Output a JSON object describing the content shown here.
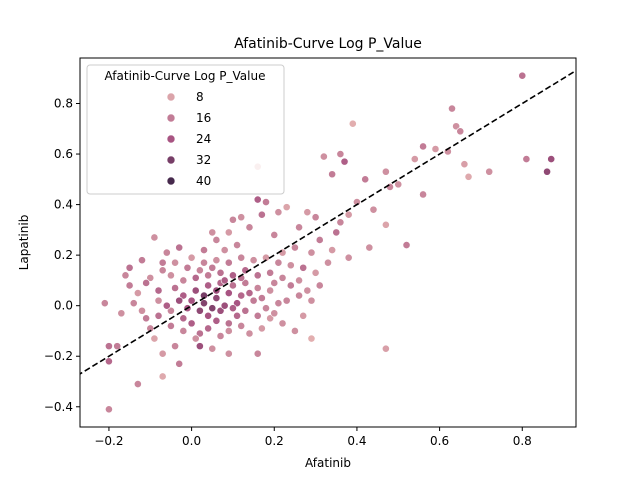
{
  "chart_data": {
    "type": "scatter",
    "title": "Afatinib-Curve Log P_Value",
    "xlabel": "Afatinib",
    "ylabel": "Lapatinib",
    "xlim": [
      -0.27,
      0.93
    ],
    "ylim": [
      -0.48,
      0.98
    ],
    "xticks": [
      -0.2,
      0.0,
      0.2,
      0.4,
      0.6,
      0.8
    ],
    "xtick_labels": [
      "−0.2",
      "0.0",
      "0.2",
      "0.4",
      "0.6",
      "0.8"
    ],
    "yticks": [
      -0.4,
      -0.2,
      0.0,
      0.2,
      0.4,
      0.6,
      0.8
    ],
    "ytick_labels": [
      "−0.4",
      "−0.2",
      "0.0",
      "0.2",
      "0.4",
      "0.6",
      "0.8"
    ],
    "grid": false,
    "hue_name": "Afatinib-Curve Log P_Value",
    "hue_range": [
      4,
      44
    ],
    "reference_line": {
      "style": "dashed",
      "color": "#000000",
      "slope": 1,
      "intercept": 0
    },
    "legend": {
      "title": "Afatinib-Curve Log P_Value",
      "placement": "top-left",
      "entries": [
        {
          "label": "8",
          "value": 8
        },
        {
          "label": "16",
          "value": 16
        },
        {
          "label": "24",
          "value": 24
        },
        {
          "label": "32",
          "value": 32
        },
        {
          "label": "40",
          "value": 40
        }
      ]
    },
    "colors": {
      "low": "#e8b8b4",
      "high": "#2d1e3e",
      "marker_edge": "#ffffff"
    },
    "points": [
      {
        "x": 0.8,
        "y": 0.91,
        "hue": 18
      },
      {
        "x": 0.87,
        "y": 0.58,
        "hue": 26
      },
      {
        "x": 0.86,
        "y": 0.53,
        "hue": 28
      },
      {
        "x": 0.81,
        "y": 0.58,
        "hue": 16
      },
      {
        "x": 0.72,
        "y": 0.53,
        "hue": 12
      },
      {
        "x": 0.67,
        "y": 0.51,
        "hue": 7
      },
      {
        "x": 0.66,
        "y": 0.56,
        "hue": 9
      },
      {
        "x": 0.64,
        "y": 0.71,
        "hue": 12
      },
      {
        "x": 0.63,
        "y": 0.78,
        "hue": 14
      },
      {
        "x": 0.65,
        "y": 0.69,
        "hue": 14
      },
      {
        "x": 0.62,
        "y": 0.61,
        "hue": 12
      },
      {
        "x": 0.59,
        "y": 0.62,
        "hue": 10
      },
      {
        "x": 0.56,
        "y": 0.63,
        "hue": 16
      },
      {
        "x": 0.54,
        "y": 0.58,
        "hue": 10
      },
      {
        "x": 0.56,
        "y": 0.44,
        "hue": 14
      },
      {
        "x": 0.5,
        "y": 0.48,
        "hue": 12
      },
      {
        "x": 0.48,
        "y": 0.47,
        "hue": 14
      },
      {
        "x": 0.47,
        "y": 0.53,
        "hue": 12
      },
      {
        "x": 0.47,
        "y": 0.32,
        "hue": 8
      },
      {
        "x": 0.52,
        "y": 0.24,
        "hue": 16
      },
      {
        "x": 0.47,
        "y": -0.17,
        "hue": 9
      },
      {
        "x": 0.39,
        "y": 0.72,
        "hue": 6
      },
      {
        "x": 0.36,
        "y": 0.6,
        "hue": 14
      },
      {
        "x": 0.32,
        "y": 0.59,
        "hue": 12
      },
      {
        "x": 0.34,
        "y": 0.52,
        "hue": 16
      },
      {
        "x": 0.37,
        "y": 0.57,
        "hue": 22
      },
      {
        "x": 0.42,
        "y": 0.5,
        "hue": 16
      },
      {
        "x": 0.44,
        "y": 0.38,
        "hue": 12
      },
      {
        "x": 0.4,
        "y": 0.41,
        "hue": 12
      },
      {
        "x": 0.38,
        "y": 0.36,
        "hue": 10
      },
      {
        "x": 0.36,
        "y": 0.33,
        "hue": 14
      },
      {
        "x": 0.35,
        "y": 0.29,
        "hue": 18
      },
      {
        "x": 0.43,
        "y": 0.23,
        "hue": 12
      },
      {
        "x": 0.38,
        "y": 0.19,
        "hue": 12
      },
      {
        "x": 0.3,
        "y": 0.35,
        "hue": 14
      },
      {
        "x": 0.28,
        "y": 0.37,
        "hue": 10
      },
      {
        "x": 0.26,
        "y": 0.31,
        "hue": 14
      },
      {
        "x": 0.31,
        "y": 0.26,
        "hue": 16
      },
      {
        "x": 0.29,
        "y": 0.21,
        "hue": 12
      },
      {
        "x": 0.25,
        "y": 0.23,
        "hue": 14
      },
      {
        "x": 0.27,
        "y": 0.15,
        "hue": 18
      },
      {
        "x": 0.23,
        "y": 0.39,
        "hue": 8
      },
      {
        "x": 0.21,
        "y": 0.37,
        "hue": 12
      },
      {
        "x": 0.18,
        "y": 0.41,
        "hue": 16
      },
      {
        "x": 0.16,
        "y": 0.55,
        "hue": 5
      },
      {
        "x": 0.16,
        "y": 0.42,
        "hue": 22
      },
      {
        "x": 0.17,
        "y": 0.36,
        "hue": 18
      },
      {
        "x": 0.12,
        "y": 0.35,
        "hue": 12
      },
      {
        "x": 0.1,
        "y": 0.34,
        "hue": 14
      },
      {
        "x": 0.14,
        "y": 0.31,
        "hue": 14
      },
      {
        "x": 0.09,
        "y": 0.29,
        "hue": 10
      },
      {
        "x": 0.05,
        "y": 0.29,
        "hue": 12
      },
      {
        "x": 0.03,
        "y": 0.22,
        "hue": 16
      },
      {
        "x": 0.06,
        "y": 0.26,
        "hue": 14
      },
      {
        "x": 0.2,
        "y": 0.28,
        "hue": 14
      },
      {
        "x": 0.28,
        "y": 0.06,
        "hue": 12
      },
      {
        "x": 0.24,
        "y": 0.08,
        "hue": 16
      },
      {
        "x": 0.26,
        "y": 0.04,
        "hue": 14
      },
      {
        "x": 0.29,
        "y": -0.13,
        "hue": 6
      },
      {
        "x": 0.22,
        "y": -0.07,
        "hue": 12
      },
      {
        "x": 0.19,
        "y": -0.05,
        "hue": 10
      },
      {
        "x": 0.16,
        "y": -0.19,
        "hue": 14
      },
      {
        "x": 0.09,
        "y": -0.19,
        "hue": 12
      },
      {
        "x": -0.12,
        "y": 0.18,
        "hue": 16
      },
      {
        "x": -0.15,
        "y": 0.15,
        "hue": 18
      },
      {
        "x": -0.16,
        "y": 0.12,
        "hue": 14
      },
      {
        "x": -0.09,
        "y": 0.27,
        "hue": 12
      },
      {
        "x": -0.06,
        "y": 0.21,
        "hue": 14
      },
      {
        "x": -0.03,
        "y": 0.23,
        "hue": 18
      },
      {
        "x": -0.1,
        "y": 0.11,
        "hue": 12
      },
      {
        "x": -0.07,
        "y": 0.17,
        "hue": 16
      },
      {
        "x": -0.13,
        "y": 0.05,
        "hue": 10
      },
      {
        "x": -0.08,
        "y": 0.02,
        "hue": 12
      },
      {
        "x": -0.05,
        "y": -0.02,
        "hue": 14
      },
      {
        "x": -0.11,
        "y": -0.05,
        "hue": 16
      },
      {
        "x": -0.14,
        "y": 0.01,
        "hue": 14
      },
      {
        "x": -0.17,
        "y": -0.03,
        "hue": 12
      },
      {
        "x": -0.09,
        "y": -0.13,
        "hue": 8
      },
      {
        "x": -0.07,
        "y": -0.19,
        "hue": 10
      },
      {
        "x": -0.07,
        "y": -0.28,
        "hue": 7
      },
      {
        "x": -0.13,
        "y": -0.31,
        "hue": 14
      },
      {
        "x": -0.18,
        "y": -0.16,
        "hue": 16
      },
      {
        "x": -0.2,
        "y": -0.16,
        "hue": 18
      },
      {
        "x": -0.21,
        "y": 0.01,
        "hue": 14
      },
      {
        "x": -0.2,
        "y": -0.22,
        "hue": 20
      },
      {
        "x": -0.2,
        "y": -0.41,
        "hue": 14
      },
      {
        "x": -0.04,
        "y": -0.16,
        "hue": 14
      },
      {
        "x": -0.03,
        "y": -0.23,
        "hue": 16
      },
      {
        "x": 0.02,
        "y": -0.16,
        "hue": 26
      },
      {
        "x": 0.05,
        "y": -0.17,
        "hue": 12
      },
      {
        "x": 0.07,
        "y": -0.12,
        "hue": 14
      },
      {
        "x": 0.09,
        "y": -0.1,
        "hue": 12
      },
      {
        "x": 0.02,
        "y": -0.11,
        "hue": 18
      },
      {
        "x": 0.0,
        "y": -0.07,
        "hue": 22
      },
      {
        "x": -0.02,
        "y": -0.05,
        "hue": 20
      },
      {
        "x": 0.04,
        "y": -0.04,
        "hue": 24
      },
      {
        "x": 0.07,
        "y": -0.02,
        "hue": 26
      },
      {
        "x": 0.11,
        "y": -0.04,
        "hue": 20
      },
      {
        "x": 0.13,
        "y": -0.02,
        "hue": 18
      },
      {
        "x": 0.16,
        "y": -0.04,
        "hue": 16
      },
      {
        "x": 0.18,
        "y": -0.01,
        "hue": 14
      },
      {
        "x": 0.21,
        "y": 0.01,
        "hue": 14
      },
      {
        "x": 0.15,
        "y": 0.02,
        "hue": 16
      },
      {
        "x": 0.12,
        "y": 0.04,
        "hue": 20
      },
      {
        "x": 0.09,
        "y": 0.05,
        "hue": 24
      },
      {
        "x": 0.06,
        "y": 0.03,
        "hue": 28
      },
      {
        "x": 0.03,
        "y": 0.01,
        "hue": 30
      },
      {
        "x": 0.0,
        "y": 0.02,
        "hue": 24
      },
      {
        "x": -0.02,
        "y": 0.04,
        "hue": 22
      },
      {
        "x": -0.04,
        "y": 0.07,
        "hue": 18
      },
      {
        "x": 0.01,
        "y": 0.06,
        "hue": 26
      },
      {
        "x": 0.04,
        "y": 0.08,
        "hue": 22
      },
      {
        "x": 0.07,
        "y": 0.09,
        "hue": 20
      },
      {
        "x": 0.1,
        "y": 0.08,
        "hue": 18
      },
      {
        "x": 0.13,
        "y": 0.09,
        "hue": 16
      },
      {
        "x": 0.16,
        "y": 0.07,
        "hue": 14
      },
      {
        "x": 0.19,
        "y": 0.06,
        "hue": 12
      },
      {
        "x": 0.22,
        "y": 0.11,
        "hue": 14
      },
      {
        "x": 0.19,
        "y": 0.13,
        "hue": 16
      },
      {
        "x": 0.16,
        "y": 0.12,
        "hue": 18
      },
      {
        "x": 0.13,
        "y": 0.14,
        "hue": 20
      },
      {
        "x": 0.1,
        "y": 0.12,
        "hue": 22
      },
      {
        "x": 0.07,
        "y": 0.13,
        "hue": 18
      },
      {
        "x": 0.04,
        "y": 0.12,
        "hue": 16
      },
      {
        "x": 0.01,
        "y": 0.11,
        "hue": 20
      },
      {
        "x": -0.02,
        "y": 0.1,
        "hue": 14
      },
      {
        "x": -0.05,
        "y": 0.12,
        "hue": 12
      },
      {
        "x": -0.01,
        "y": 0.15,
        "hue": 16
      },
      {
        "x": 0.03,
        "y": 0.17,
        "hue": 14
      },
      {
        "x": 0.06,
        "y": 0.18,
        "hue": 12
      },
      {
        "x": 0.09,
        "y": 0.17,
        "hue": 16
      },
      {
        "x": 0.12,
        "y": 0.19,
        "hue": 14
      },
      {
        "x": 0.15,
        "y": 0.18,
        "hue": 12
      },
      {
        "x": 0.18,
        "y": 0.19,
        "hue": 10
      },
      {
        "x": 0.21,
        "y": 0.17,
        "hue": 14
      },
      {
        "x": 0.24,
        "y": 0.16,
        "hue": 12
      },
      {
        "x": 0.22,
        "y": 0.21,
        "hue": 10
      },
      {
        "x": 0.11,
        "y": 0.24,
        "hue": 14
      },
      {
        "x": 0.08,
        "y": 0.22,
        "hue": 12
      },
      {
        "x": -0.03,
        "y": 0.02,
        "hue": 26
      },
      {
        "x": -0.06,
        "y": 0.0,
        "hue": 22
      },
      {
        "x": -0.08,
        "y": -0.04,
        "hue": 18
      },
      {
        "x": -0.05,
        "y": -0.08,
        "hue": 16
      },
      {
        "x": -0.02,
        "y": -0.1,
        "hue": 14
      },
      {
        "x": 0.01,
        "y": -0.13,
        "hue": 12
      },
      {
        "x": 0.04,
        "y": -0.09,
        "hue": 20
      },
      {
        "x": 0.06,
        "y": -0.06,
        "hue": 22
      },
      {
        "x": 0.09,
        "y": -0.07,
        "hue": 18
      },
      {
        "x": 0.12,
        "y": -0.08,
        "hue": 14
      },
      {
        "x": 0.14,
        "y": -0.11,
        "hue": 12
      },
      {
        "x": 0.17,
        "y": -0.09,
        "hue": 10
      },
      {
        "x": 0.2,
        "y": -0.03,
        "hue": 12
      },
      {
        "x": 0.23,
        "y": 0.02,
        "hue": 14
      },
      {
        "x": 0.26,
        "y": 0.1,
        "hue": 12
      },
      {
        "x": 0.3,
        "y": 0.13,
        "hue": 10
      },
      {
        "x": 0.33,
        "y": 0.17,
        "hue": 12
      },
      {
        "x": 0.31,
        "y": 0.08,
        "hue": 14
      },
      {
        "x": 0.34,
        "y": 0.22,
        "hue": 10
      },
      {
        "x": -0.1,
        "y": -0.09,
        "hue": 14
      },
      {
        "x": -0.12,
        "y": -0.02,
        "hue": 12
      },
      {
        "x": -0.15,
        "y": 0.08,
        "hue": 16
      },
      {
        "x": -0.11,
        "y": 0.09,
        "hue": 18
      },
      {
        "x": -0.08,
        "y": 0.06,
        "hue": 20
      },
      {
        "x": -0.07,
        "y": 0.14,
        "hue": 14
      },
      {
        "x": -0.04,
        "y": 0.17,
        "hue": 12
      },
      {
        "x": 0.0,
        "y": 0.19,
        "hue": 10
      },
      {
        "x": 0.02,
        "y": 0.14,
        "hue": 14
      },
      {
        "x": 0.05,
        "y": 0.15,
        "hue": 16
      },
      {
        "x": 0.08,
        "y": 0.1,
        "hue": 22
      },
      {
        "x": 0.11,
        "y": 0.01,
        "hue": 24
      },
      {
        "x": 0.14,
        "y": 0.05,
        "hue": 20
      },
      {
        "x": 0.17,
        "y": 0.03,
        "hue": 16
      },
      {
        "x": 0.05,
        "y": -0.01,
        "hue": 30
      },
      {
        "x": 0.02,
        "y": -0.02,
        "hue": 28
      },
      {
        "x": -0.01,
        "y": -0.01,
        "hue": 24
      },
      {
        "x": 0.08,
        "y": 0.0,
        "hue": 26
      },
      {
        "x": 0.1,
        "y": -0.01,
        "hue": 22
      },
      {
        "x": 0.12,
        "y": 0.11,
        "hue": 18
      },
      {
        "x": 0.03,
        "y": 0.04,
        "hue": 32
      },
      {
        "x": 0.06,
        "y": 0.06,
        "hue": 26
      },
      {
        "x": 0.25,
        "y": -0.1,
        "hue": 12
      },
      {
        "x": 0.27,
        "y": -0.04,
        "hue": 10
      },
      {
        "x": 0.2,
        "y": 0.09,
        "hue": 14
      },
      {
        "x": 0.29,
        "y": 0.02,
        "hue": 12
      }
    ]
  }
}
